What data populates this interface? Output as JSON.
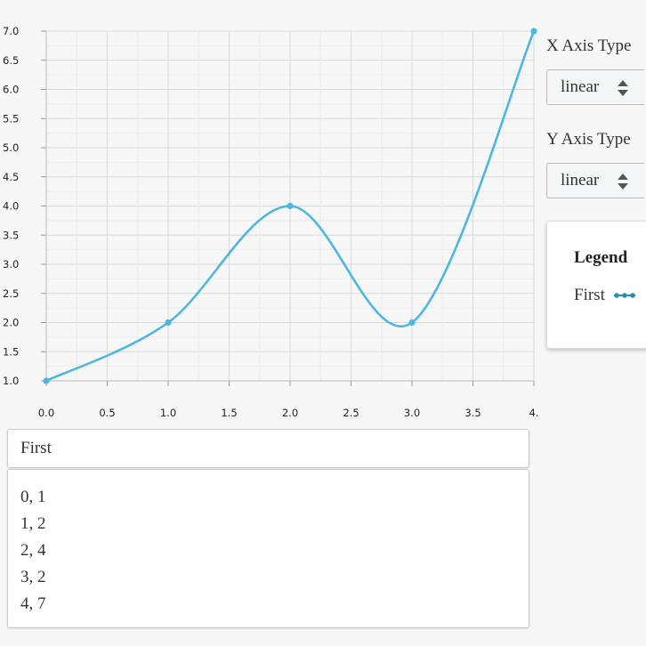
{
  "chart_data": {
    "type": "line",
    "x": [
      0,
      1,
      2,
      3,
      4
    ],
    "series": [
      {
        "name": "First",
        "values": [
          1,
          2,
          4,
          2,
          7
        ],
        "color": "#4db6e2"
      }
    ],
    "xlim": [
      0,
      4
    ],
    "ylim": [
      1,
      7
    ],
    "xticks": [
      "0.0",
      "0.5",
      "1.0",
      "1.5",
      "2.0",
      "2.5",
      "3.0",
      "3.5",
      "4."
    ],
    "yticks": [
      "7.0",
      "6.5",
      "6.0",
      "5.5",
      "5.0",
      "4.5",
      "4.0",
      "3.5",
      "3.0",
      "2.5",
      "2.0",
      "1.5",
      "1.0"
    ],
    "grid": true,
    "smooth": true,
    "legend_position": "right"
  },
  "controls": {
    "x_axis_label": "X Axis Type",
    "x_axis_value": "linear",
    "y_axis_label": "Y Axis Type",
    "y_axis_value": "linear"
  },
  "legend": {
    "title": "Legend",
    "entries": [
      {
        "label": "First",
        "color": "#2b8fb3"
      }
    ]
  },
  "editor": {
    "series_name": "First",
    "lines": [
      "0, 1",
      "1, 2",
      "2, 4",
      "3, 2",
      "4, 7"
    ]
  }
}
